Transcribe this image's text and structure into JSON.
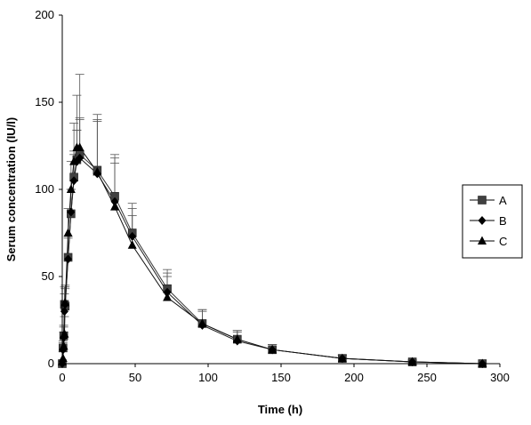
{
  "chart_data": {
    "type": "line",
    "xlabel": "Time (h)",
    "ylabel": "Serum concentration (IU/l)",
    "xlim": [
      0,
      300
    ],
    "ylim": [
      0,
      200
    ],
    "x_ticks": [
      0,
      50,
      100,
      150,
      200,
      250,
      300
    ],
    "y_ticks": [
      0,
      50,
      100,
      150,
      200
    ],
    "grid": false,
    "legend_position": "right",
    "x": [
      0,
      0.5,
      1,
      1.5,
      2,
      4,
      6,
      8,
      10,
      12,
      24,
      36,
      48,
      72,
      96,
      120,
      144,
      192,
      240,
      288
    ],
    "series": [
      {
        "name": "A",
        "marker": "square",
        "values": [
          0,
          9,
          16,
          34,
          33,
          61,
          86,
          107,
          117,
          120,
          111,
          96,
          75,
          43,
          23,
          14,
          8,
          3,
          1,
          0
        ],
        "error_upper": [
          0,
          4,
          6,
          10,
          10,
          12,
          14,
          15,
          17,
          21,
          29,
          24,
          17,
          11,
          8,
          5,
          3,
          2,
          1,
          0
        ]
      },
      {
        "name": "B",
        "marker": "diamond",
        "values": [
          0,
          8,
          15,
          30,
          34,
          60,
          87,
          105,
          116,
          118,
          109,
          93,
          73,
          41,
          22,
          13,
          8,
          3,
          1,
          0
        ],
        "error_upper": [
          0,
          4,
          6,
          10,
          10,
          12,
          13,
          15,
          18,
          22,
          30,
          22,
          16,
          11,
          8,
          5,
          3,
          2,
          1,
          0
        ]
      },
      {
        "name": "C",
        "marker": "triangle",
        "values": [
          1,
          3,
          10,
          17,
          35,
          75,
          100,
          116,
          124,
          124,
          110,
          90,
          68,
          38,
          23,
          14,
          8,
          3,
          1,
          0
        ],
        "error_upper": [
          0,
          4,
          8,
          10,
          10,
          14,
          16,
          22,
          30,
          42,
          33,
          28,
          17,
          12,
          8,
          5,
          3,
          2,
          1,
          0
        ]
      }
    ]
  }
}
